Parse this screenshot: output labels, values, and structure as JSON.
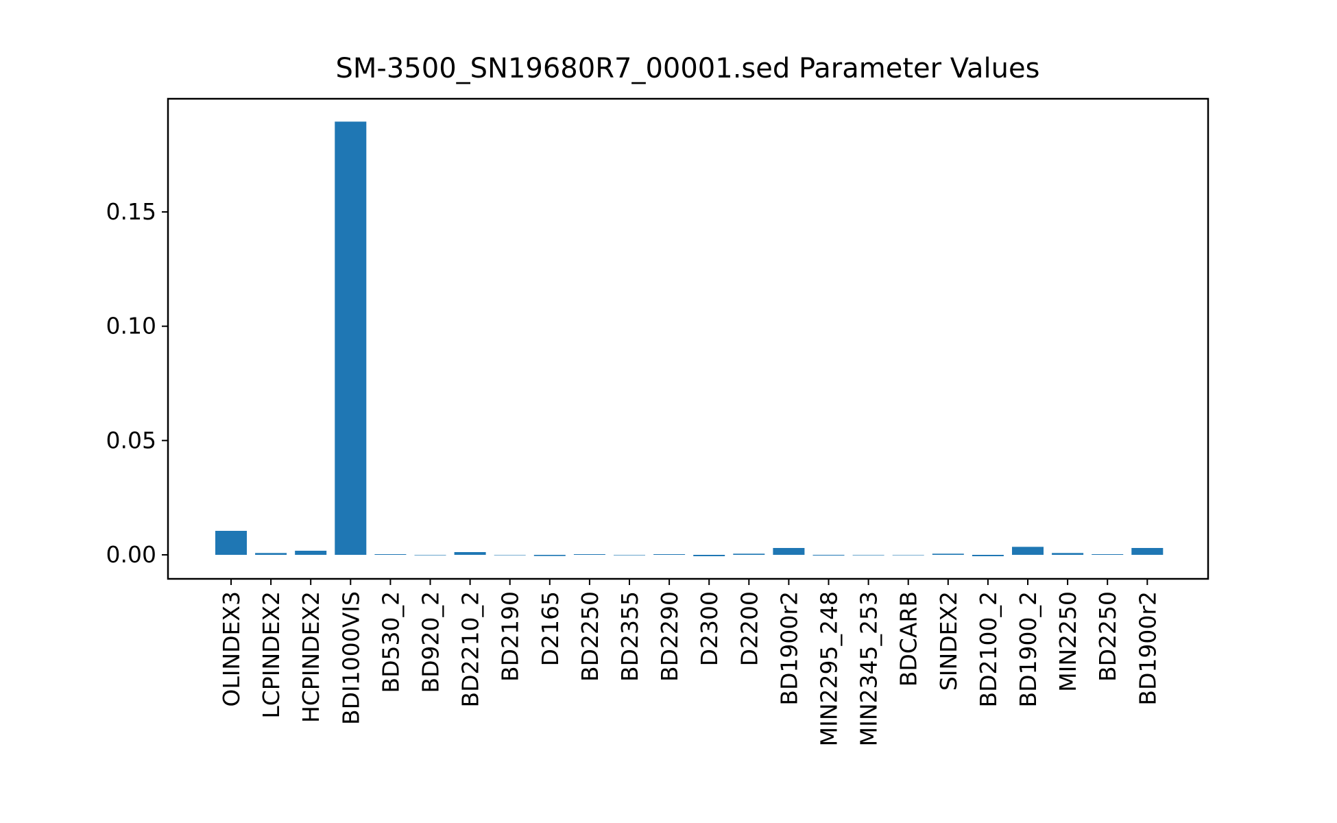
{
  "chart_data": {
    "type": "bar",
    "title": "SM-3500_SN19680R7_00001.sed Parameter Values",
    "xlabel": "",
    "ylabel": "",
    "ylim": [
      -0.0105,
      0.1995
    ],
    "yticks": [
      0.0,
      0.05,
      0.1,
      0.15
    ],
    "ytick_labels": [
      "0.00",
      "0.05",
      "0.10",
      "0.15"
    ],
    "categories": [
      "OLINDEX3",
      "LCPINDEX2",
      "HCPINDEX2",
      "BDI1000VIS",
      "BD530_2",
      "BD920_2",
      "BD2210_2",
      "BD2190",
      "D2165",
      "BD2250",
      "BD2355",
      "BD2290",
      "D2300",
      "D2200",
      "BD1900r2",
      "MIN2295_248",
      "MIN2345_253",
      "BDCARB",
      "SINDEX2",
      "BD2100_2",
      "BD1900_2",
      "MIN2250",
      "BD2250",
      "BD1900r2"
    ],
    "values": [
      0.0105,
      0.0008,
      0.0018,
      0.1895,
      0.0003,
      -0.0002,
      0.0012,
      0.0,
      -0.0005,
      0.0003,
      -0.0002,
      0.0003,
      -0.0006,
      0.0005,
      0.003,
      -0.0003,
      -0.0002,
      0.0,
      0.0005,
      -0.0006,
      0.0035,
      0.0008,
      0.0003,
      0.003
    ],
    "color": "#1f77b4",
    "grid": false,
    "legend": "none"
  }
}
